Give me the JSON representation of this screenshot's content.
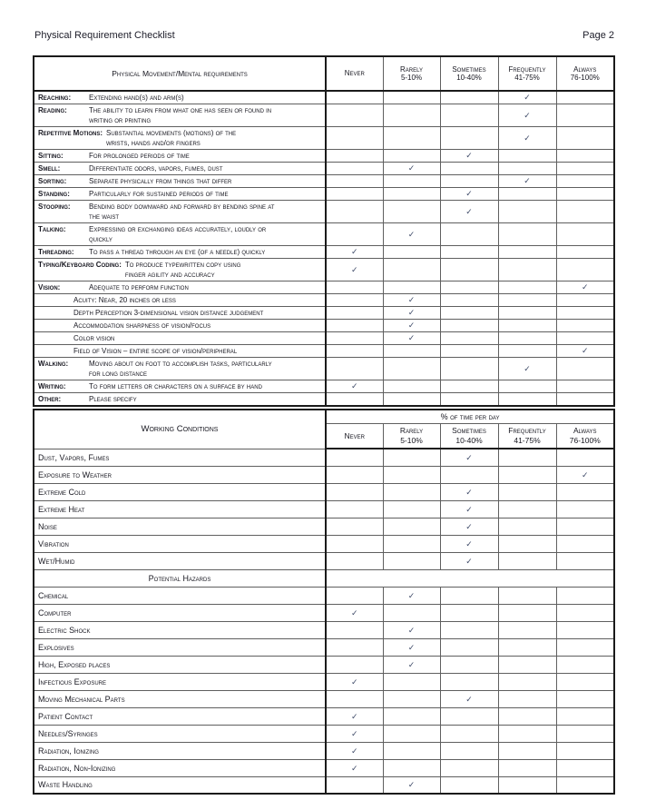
{
  "page": {
    "title": "Physical Requirement Checklist",
    "page_label": "Page 2"
  },
  "check_glyph": "✓",
  "colors": {
    "check": "#3e4a68",
    "border_heavy": "#1a1a1a",
    "border_light": "#5f5f5f"
  },
  "frequency_columns": [
    {
      "label": "Never",
      "range": ""
    },
    {
      "label": "Rarely",
      "range": "5-10%"
    },
    {
      "label": "Sometimes",
      "range": "10-40%"
    },
    {
      "label": "Frequently",
      "range": "41-75%"
    },
    {
      "label": "Always",
      "range": "76-100%"
    }
  ],
  "table1": {
    "title": "Physical Movement/Mental requirements",
    "rows": [
      {
        "label": "Reaching:",
        "desc": "Extending hand(s) and arm(s)",
        "check": 3
      },
      {
        "label": "Reading:",
        "desc": "The ability to learn from what one has seen or found in\nwriting or printing",
        "check": 3
      },
      {
        "label": "Repetitive Motions:",
        "desc": "Substantial movements (motions) of the\nwrists, hands and/or fingers",
        "check": 3
      },
      {
        "label": "Sitting:",
        "desc": "For prolonged periods of time",
        "check": 2
      },
      {
        "label": "Smell:",
        "desc": "Differentiate odors, vapors, fumes, dust",
        "check": 1
      },
      {
        "label": "Sorting:",
        "desc": "Separate physically from things that differ",
        "check": 3
      },
      {
        "label": "Standing:",
        "desc": "Particularly for sustained periods of time",
        "check": 2
      },
      {
        "label": "Stooping:",
        "desc": "Bending body downward and forward by bending spine at\nthe waist",
        "check": 2
      },
      {
        "label": "Talking:",
        "desc": "Expressing or exchanging ideas accurately, loudly or\nquickly",
        "check": 1
      },
      {
        "label": "Threading:",
        "desc": "To pass a thread through an eye (of a needle) quickly",
        "check": 0
      },
      {
        "label": "Typing/Keyboard Coding:",
        "desc": "To produce typewritten copy using\nfinger agility and accuracy",
        "check": 0
      },
      {
        "label": "Vision:",
        "desc": "Adequate to perform function",
        "check": 4
      },
      {
        "label": "",
        "desc": "Acuity: Near, 20 inches or less",
        "check": 1,
        "indent": true
      },
      {
        "label": "",
        "desc": "Depth Perception 3-dimensional vision distance judgement",
        "check": 1,
        "indent": true
      },
      {
        "label": "",
        "desc": "Accommodation sharpness of vision/focus",
        "check": 1,
        "indent": true
      },
      {
        "label": "",
        "desc": "Color vision",
        "check": 1,
        "indent": true
      },
      {
        "label": "",
        "desc": "Field of Vision – entire scope of vision/peripheral",
        "check": 4,
        "indent": true
      },
      {
        "label": "Walking:",
        "desc": "Moving about on foot to accomplish tasks, particularly\nfor long distance",
        "check": 3
      },
      {
        "label": "Writing:",
        "desc": "To form letters or characters on a surface by hand",
        "check": 0
      },
      {
        "label": "Other:",
        "desc": "Please specify",
        "check": null
      }
    ]
  },
  "table2": {
    "title": "Working Conditions",
    "group_header": "% of time per day",
    "rows": [
      {
        "label": "Dust, Vapors, Fumes",
        "check": 2
      },
      {
        "label": "Exposure to Weather",
        "check": 4
      },
      {
        "label": "Extreme Cold",
        "check": 2
      },
      {
        "label": "Extreme Heat",
        "check": 2
      },
      {
        "label": "Noise",
        "check": 2
      },
      {
        "label": "Vibration",
        "check": 2
      },
      {
        "label": "Wet/Humid",
        "check": 2
      },
      {
        "label": "Potential Hazards",
        "section": true
      },
      {
        "label": "Chemical",
        "check": 1
      },
      {
        "label": "Computer",
        "check": 0
      },
      {
        "label": "Electric Shock",
        "check": 1
      },
      {
        "label": "Explosives",
        "check": 1
      },
      {
        "label": "High, Exposed places",
        "check": 1
      },
      {
        "label": "Infectious Exposure",
        "check": 0
      },
      {
        "label": "Moving Mechanical Parts",
        "check": 2
      },
      {
        "label": "Patient Contact",
        "check": 0
      },
      {
        "label": "Needles/Syringes",
        "check": 0
      },
      {
        "label": "Radiation, Ionizing",
        "check": 0
      },
      {
        "label": "Radiation, Non-Ionizing",
        "check": 0
      },
      {
        "label": "Waste Handling",
        "check": 1
      }
    ]
  }
}
